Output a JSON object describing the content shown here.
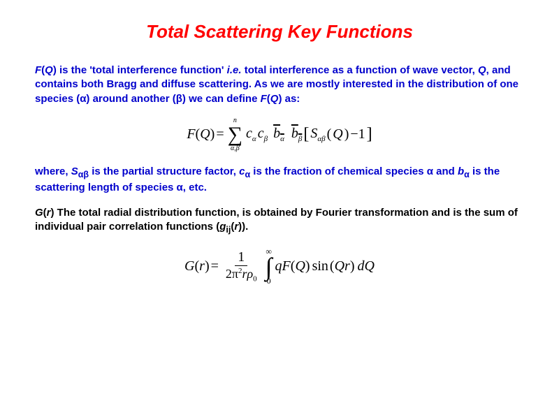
{
  "title": "Total Scattering Key Functions",
  "para1_html": "<span style='font-style:italic'>F</span>(<span style='font-style:italic'>Q</span>) is the 'total interference function' <span style='font-style:italic'>i.e.</span> total interference as a function of wave vector, <span style='font-style:italic'>Q</span>, and contains both Bragg and diffuse scattering. As we are mostly interested in the distribution of one species (α) around another (β) we can define <span style='font-style:italic'>F</span>(<span style='font-style:italic'>Q</span>) as:",
  "para2_html": "where, <span style='font-style:italic'>S</span><sub>αβ</sub> is the partial structure factor, <span style='font-style:italic'>c</span><sub>α</sub> is the fraction of chemical species α and <span style='font-style:italic'>b</span><sub>α</sub> is the scattering length of species α, etc.",
  "para3_html": "<span style='font-style:italic'>G</span>(<span style='font-style:italic'>r</span>) The total radial distribution function, is obtained by Fourier transformation and is the sum of individual pair correlation functions (<span style='font-style:italic'>g</span><sub>ij</sub>(<span style='font-style:italic'>r</span>)).",
  "eq1": {
    "lhs": "F",
    "lhs_arg": "Q",
    "sum_upper": "n",
    "sum_lower": "α,β",
    "term_c1": "c",
    "term_c1_sub": "α",
    "term_c2": "c",
    "term_c2_sub": "β",
    "term_b1": "b",
    "term_b1_sub": "α",
    "term_b2": "b",
    "term_b2_sub": "β",
    "inner_S": "S",
    "inner_S_sub": "αβ",
    "inner_arg": "Q",
    "minus_one": "−1"
  },
  "eq2": {
    "lhs": "G",
    "lhs_arg": "r",
    "frac_num": "1",
    "frac_den_pre": "2π",
    "frac_den_sup": "2",
    "frac_den_post": "rρ",
    "frac_den_sub": "0",
    "int_upper": "∞",
    "int_lower": "0",
    "term_q": "qF",
    "term_q_arg": "Q",
    "sin": "sin",
    "sin_arg": "Qr",
    "d": "dQ"
  },
  "colors": {
    "title": "#ff0000",
    "body_blue": "#0000cc",
    "body_black": "#000000",
    "background": "#ffffff"
  },
  "fontsize": {
    "title_pt": 26,
    "body_pt": 15,
    "equation_pt": 20
  }
}
